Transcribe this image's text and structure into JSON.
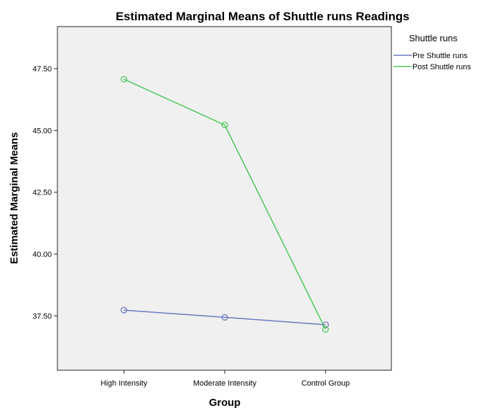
{
  "chart_data": {
    "type": "line",
    "title": "Estimated Marginal Means of Shuttle runs Readings",
    "xlabel": "Group",
    "ylabel": "Estimated Marginal Means",
    "categories": [
      "High Intensity",
      "Moderate Intensity",
      "Control Group"
    ],
    "yticks": [
      "37.50",
      "40.00",
      "42.50",
      "45.00",
      "47.50"
    ],
    "ylim": [
      35.3,
      49.2
    ],
    "grid": false,
    "legend_title": "Shuttle runs",
    "legend_position": "top-right",
    "series": [
      {
        "name": "Pre Shuttle runs",
        "values": [
          37.73,
          37.44,
          37.14
        ],
        "color": "#6b78c0"
      },
      {
        "name": "Post Shuttle runs",
        "values": [
          47.07,
          45.22,
          36.95
        ],
        "color": "#4cc75c"
      }
    ],
    "plot_background": "#f0f0f0"
  }
}
